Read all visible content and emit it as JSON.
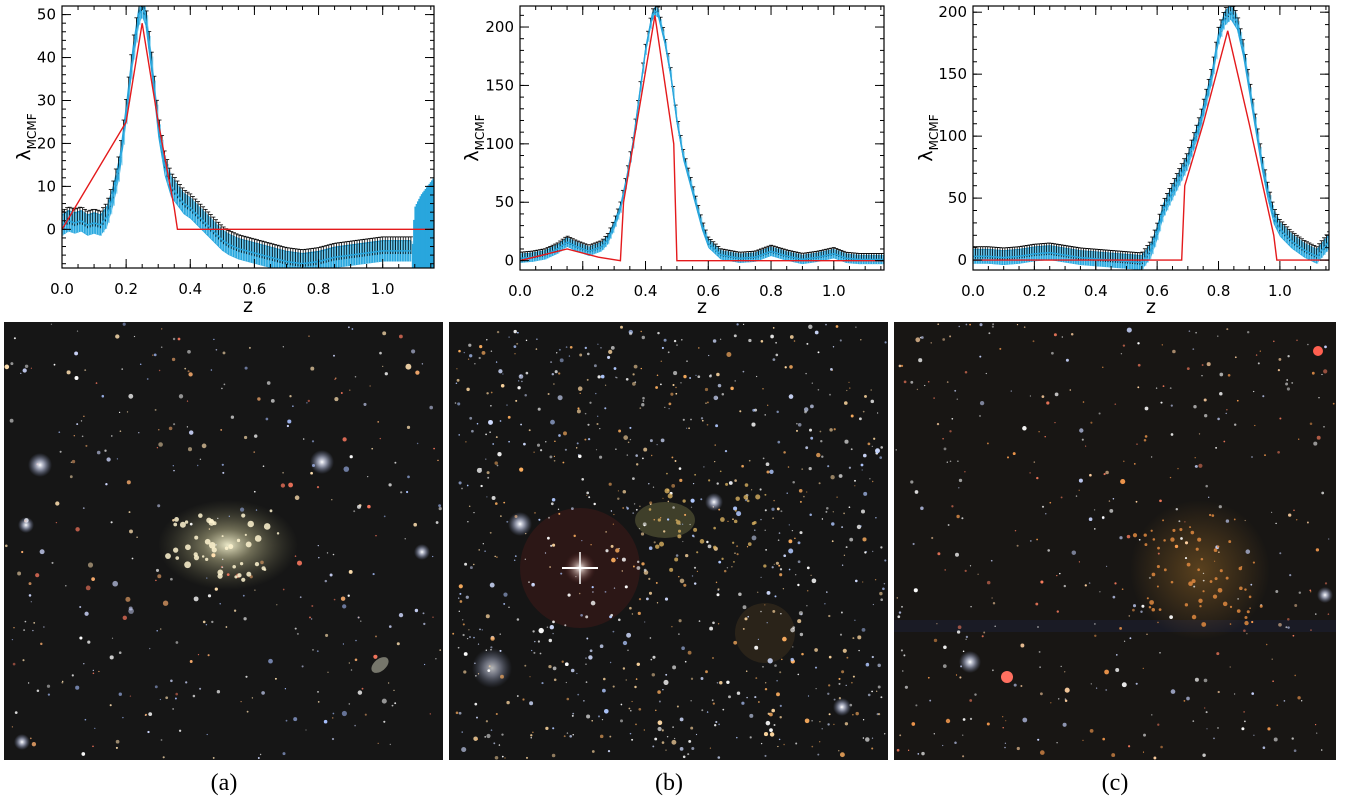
{
  "colors": {
    "band": "#29a6dd",
    "band_light": "#7fd0f0",
    "errorbar": "#000000",
    "filter": "#e41a1c",
    "sky": "#141414"
  },
  "chart_data": [
    {
      "type": "line",
      "xlabel": "z",
      "ylabel_main": "λ",
      "ylabel_sub": "MCMF",
      "xlim": [
        0.0,
        1.16
      ],
      "ylim": [
        -9,
        52
      ],
      "xticks": [
        "0.0",
        "0.2",
        "0.4",
        "0.6",
        "0.8",
        "1.0"
      ],
      "xtick_values": [
        0.0,
        0.2,
        0.4,
        0.6,
        0.8,
        1.0
      ],
      "yticks": [
        "0",
        "10",
        "20",
        "30",
        "40",
        "50"
      ],
      "ytick_values": [
        0,
        10,
        20,
        30,
        40,
        50
      ],
      "signal": {
        "x": [
          0.0,
          0.02,
          0.04,
          0.06,
          0.08,
          0.1,
          0.12,
          0.14,
          0.16,
          0.18,
          0.2,
          0.22,
          0.24,
          0.25,
          0.26,
          0.28,
          0.3,
          0.32,
          0.34,
          0.36,
          0.38,
          0.4,
          0.42,
          0.44,
          0.46,
          0.48,
          0.5,
          0.52,
          0.55,
          0.6,
          0.65,
          0.7,
          0.75,
          0.8,
          0.85,
          0.9,
          0.95,
          1.0,
          1.05,
          1.09
        ],
        "y": [
          1,
          2,
          1.5,
          2,
          1,
          1.5,
          1,
          3,
          8,
          15,
          27,
          40,
          50,
          52,
          50,
          38,
          24,
          15,
          10,
          8,
          6,
          5,
          3.5,
          2,
          0.5,
          -1,
          -2.5,
          -3.5,
          -4.5,
          -5.5,
          -6.5,
          -7.5,
          -8,
          -7.5,
          -6.5,
          -6,
          -5.5,
          -5,
          -5,
          -5
        ]
      },
      "band_halfwidth": 2.5,
      "edge": {
        "x": [
          1.09,
          1.1,
          1.12,
          1.14,
          1.16
        ],
        "y": [
          -9,
          5,
          8,
          10,
          12
        ]
      },
      "filter": {
        "x": [
          0.0,
          0.2,
          0.25,
          0.3,
          0.35,
          0.36,
          1.16
        ],
        "y": [
          0,
          25,
          48,
          25,
          5,
          0,
          0
        ]
      }
    },
    {
      "type": "line",
      "xlabel": "z",
      "ylabel_main": "λ",
      "ylabel_sub": "MCMF",
      "xlim": [
        0.0,
        1.16
      ],
      "ylim": [
        -8,
        218
      ],
      "xticks": [
        "0.0",
        "0.2",
        "0.4",
        "0.6",
        "0.8",
        "1.0"
      ],
      "xtick_values": [
        0.0,
        0.2,
        0.4,
        0.6,
        0.8,
        1.0
      ],
      "yticks": [
        "0",
        "50",
        "100",
        "150",
        "200"
      ],
      "ytick_values": [
        0,
        50,
        100,
        150,
        200
      ],
      "signal": {
        "x": [
          0.0,
          0.04,
          0.08,
          0.12,
          0.15,
          0.18,
          0.22,
          0.26,
          0.28,
          0.3,
          0.32,
          0.34,
          0.36,
          0.38,
          0.4,
          0.42,
          0.43,
          0.44,
          0.46,
          0.48,
          0.5,
          0.52,
          0.54,
          0.56,
          0.58,
          0.6,
          0.64,
          0.7,
          0.75,
          0.8,
          0.85,
          0.9,
          0.95,
          1.0,
          1.04,
          1.08,
          1.12,
          1.16
        ],
        "y": [
          2,
          3,
          5,
          10,
          16,
          12,
          8,
          12,
          18,
          30,
          45,
          70,
          100,
          140,
          180,
          208,
          214,
          212,
          190,
          160,
          120,
          90,
          70,
          50,
          30,
          15,
          5,
          2,
          3,
          8,
          4,
          1,
          3,
          6,
          2,
          1,
          1,
          1
        ]
      },
      "band_halfwidth": 4,
      "edge": null,
      "filter": {
        "x": [
          0.0,
          0.15,
          0.25,
          0.32,
          0.33,
          0.43,
          0.49,
          0.5,
          1.16
        ],
        "y": [
          0,
          10,
          3,
          0,
          50,
          210,
          100,
          0,
          0
        ]
      }
    },
    {
      "type": "line",
      "xlabel": "z",
      "ylabel_main": "λ",
      "ylabel_sub": "MCMF",
      "xlim": [
        0.0,
        1.16
      ],
      "ylim": [
        -8,
        205
      ],
      "xticks": [
        "0.0",
        "0.2",
        "0.4",
        "0.6",
        "0.8",
        "1.0"
      ],
      "xtick_values": [
        0.0,
        0.2,
        0.4,
        0.6,
        0.8,
        1.0
      ],
      "yticks": [
        "0",
        "50",
        "100",
        "150",
        "200"
      ],
      "ytick_values": [
        0,
        50,
        100,
        150,
        200
      ],
      "signal": {
        "x": [
          0.0,
          0.05,
          0.1,
          0.15,
          0.2,
          0.25,
          0.3,
          0.35,
          0.4,
          0.45,
          0.5,
          0.55,
          0.58,
          0.6,
          0.62,
          0.66,
          0.7,
          0.74,
          0.78,
          0.8,
          0.82,
          0.84,
          0.86,
          0.88,
          0.9,
          0.92,
          0.94,
          0.96,
          0.98,
          1.0,
          1.04,
          1.08,
          1.12,
          1.16
        ],
        "y": [
          3,
          3,
          2,
          3,
          5,
          6,
          4,
          2,
          1,
          0,
          -1,
          -2,
          8,
          22,
          40,
          60,
          80,
          110,
          150,
          180,
          195,
          200,
          192,
          170,
          140,
          110,
          80,
          55,
          35,
          25,
          15,
          8,
          3,
          15
        ]
      },
      "band_halfwidth": 6,
      "edge": null,
      "filter": {
        "x": [
          0.0,
          0.68,
          0.69,
          0.75,
          0.83,
          0.9,
          0.98,
          0.99,
          1.16
        ],
        "y": [
          0,
          0,
          60,
          110,
          185,
          110,
          20,
          0,
          0
        ]
      }
    }
  ],
  "captions": [
    "(a)",
    "(b)",
    "(c)"
  ]
}
